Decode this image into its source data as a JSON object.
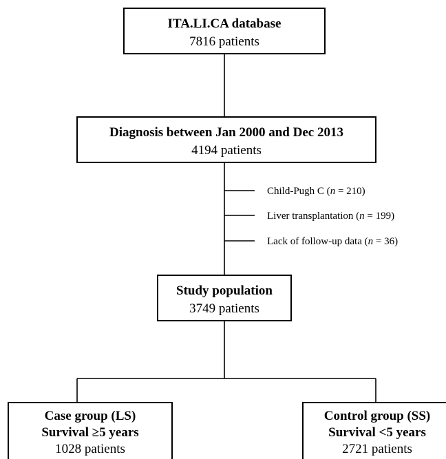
{
  "nodes": [
    {
      "title": "ITA.LI.CA database",
      "text": "7816 patients"
    },
    {
      "title": "Diagnosis between Jan 2000 and Dec 2013",
      "text": "4194 patients"
    },
    {
      "title": "Study population",
      "text": "3749 patients"
    },
    {
      "title": "Case group (LS)",
      "subtitle": "Survival ≥5 years",
      "text": "1028 patients"
    },
    {
      "title": "Control group (SS)",
      "subtitle": "Survival <5 years",
      "text": "2721 patients"
    }
  ],
  "exclusions": [
    {
      "prefix": "Child-Pugh C (",
      "var": "n",
      "suffix": " = 210)"
    },
    {
      "prefix": "Liver transplantation (",
      "var": "n",
      "suffix": " = 199)"
    },
    {
      "prefix": "Lack of follow-up data (",
      "var": "n",
      "suffix": " = 36)"
    }
  ]
}
